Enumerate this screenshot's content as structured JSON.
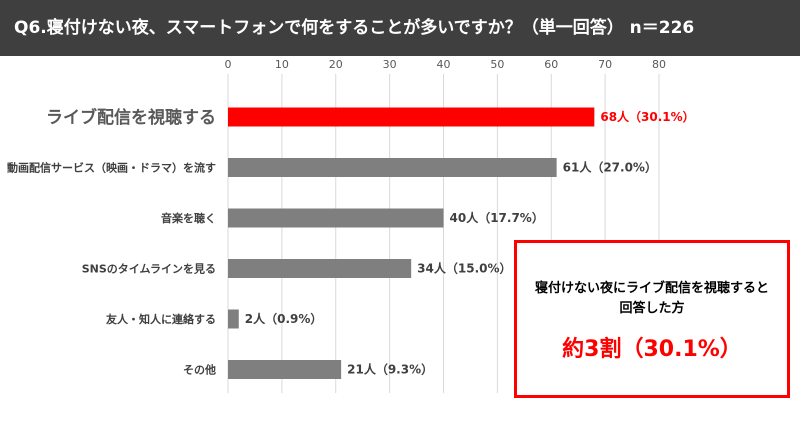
{
  "header": {
    "title": "Q6.寝付けない夜、スマートフォンで何をすることが多いですか？（単一回答） n＝226"
  },
  "chart_data": {
    "type": "bar",
    "orientation": "horizontal",
    "title": "",
    "xlim": [
      0,
      80
    ],
    "x_ticks": [
      "0",
      "10",
      "20",
      "30",
      "40",
      "50",
      "60",
      "70",
      "80"
    ],
    "grid": true,
    "categories": [
      "ライブ配信を視聴する",
      "動画配信サービス（映画・ドラマ）を流す",
      "音楽を聴く",
      "SNSのタイムラインを見る",
      "友人・知人に連絡する",
      "その他"
    ],
    "values": [
      68,
      61,
      40,
      34,
      2,
      21
    ],
    "data_labels": [
      "68人（30.1%）",
      "61人（27.0%）",
      "40人（17.7%）",
      "34人（15.0%）",
      "2人（0.9%）",
      "21人（9.3%）"
    ],
    "highlight_index": 0,
    "colors": {
      "highlight": "#ff0000",
      "bar": "#7f7f7f",
      "grid": "#d9d9d9",
      "tick": "#595959"
    }
  },
  "callout": {
    "caption": "寝付けない夜にライブ配信を視聴すると回答した方",
    "value": "約3割（30.1%）",
    "color": "#ff0000"
  }
}
